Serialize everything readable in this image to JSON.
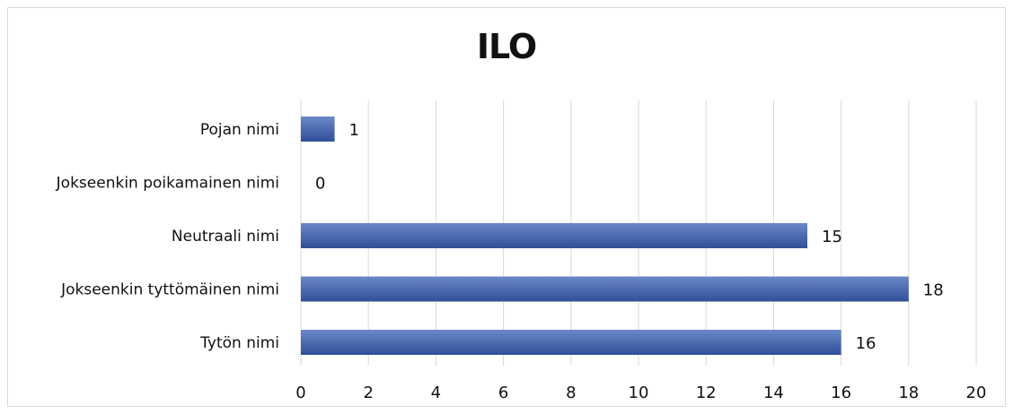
{
  "chart_data": {
    "type": "bar",
    "orientation": "horizontal",
    "title": "ILO",
    "xlabel": "",
    "ylabel": "",
    "categories": [
      "Pojan nimi",
      "Jokseenkin poikamainen nimi",
      "Neutraali nimi",
      "Jokseenkin tyttömäinen nimi",
      "Tytön nimi"
    ],
    "values": [
      1,
      0,
      15,
      18,
      16
    ],
    "data_labels": [
      "1",
      "0",
      "15",
      "18",
      "16"
    ],
    "xlim": [
      0,
      20
    ],
    "x_ticks": [
      "0",
      "2",
      "4",
      "6",
      "8",
      "10",
      "12",
      "14",
      "16",
      "18",
      "20"
    ],
    "grid": "vertical",
    "legend": "none",
    "bar_color": "#4a6bb5",
    "bar_color_light": "#6b88c8",
    "bar_color_dark": "#2f4f98"
  }
}
